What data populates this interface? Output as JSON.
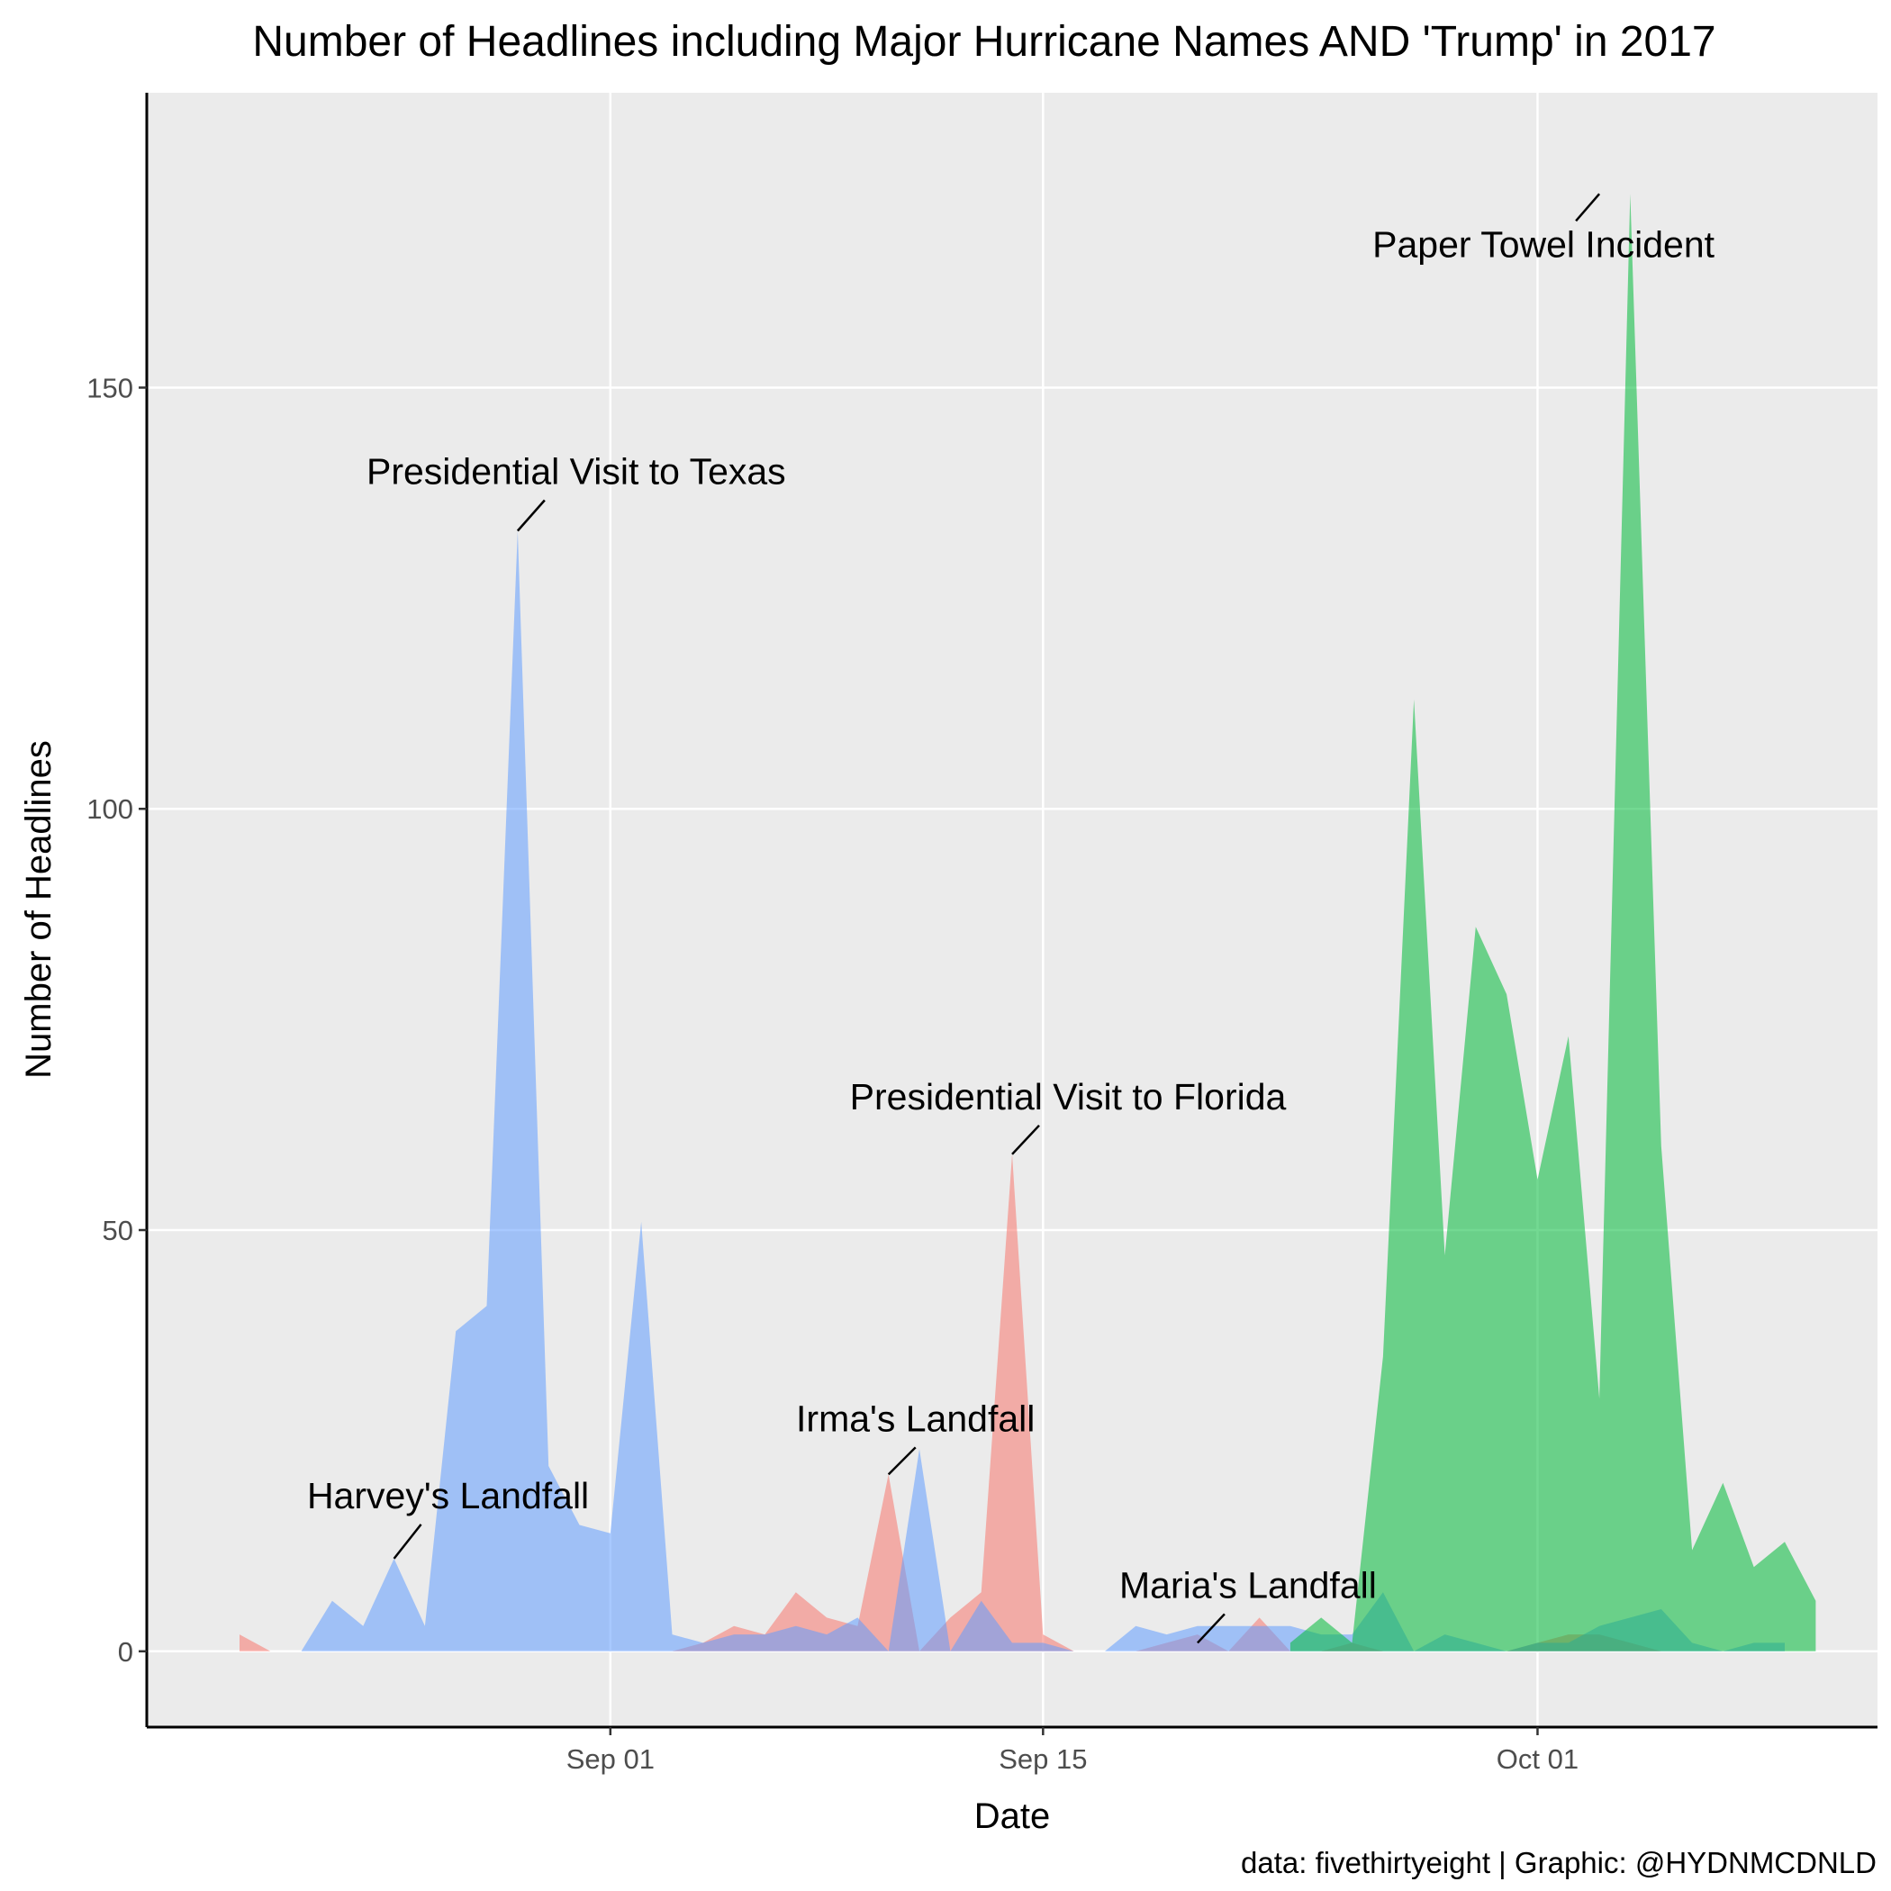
{
  "chart_data": {
    "type": "area",
    "title": "Number of Headlines including Major Hurricane Names AND 'Trump' in 2017",
    "xlabel": "Date",
    "ylabel": "Number of Headlines",
    "caption": "data: fivethirtyeight | Graphic: @HYDNMCDNLD",
    "xlim": [
      "2017-08-17",
      "2017-10-12"
    ],
    "ylim": [
      -9,
      185
    ],
    "x_ticks": [
      {
        "date": "2017-09-01",
        "label": "Sep 01"
      },
      {
        "date": "2017-09-15",
        "label": "Sep 15"
      },
      {
        "date": "2017-10-01",
        "label": "Oct 01"
      }
    ],
    "y_ticks": [
      {
        "value": 0,
        "label": "0"
      },
      {
        "value": 50,
        "label": "50"
      },
      {
        "value": 100,
        "label": "100"
      },
      {
        "value": 150,
        "label": "150"
      }
    ],
    "grid": true,
    "legend": "none",
    "colors": {
      "irma": "#F8766D",
      "harvey": "#619CFF",
      "maria": "#00BA38",
      "panel_bg": "#EBEBEB",
      "grid": "#FFFFFF"
    },
    "series": [
      {
        "key": "irma",
        "color": "#F8766D",
        "points": [
          [
            "2017-08-20",
            2
          ],
          [
            "2017-08-21",
            0
          ],
          [
            "2017-08-22",
            0
          ],
          [
            "2017-08-23",
            0
          ],
          [
            "2017-08-24",
            0
          ],
          [
            "2017-08-25",
            0
          ],
          [
            "2017-08-26",
            0
          ],
          [
            "2017-08-27",
            0
          ],
          [
            "2017-08-28",
            0
          ],
          [
            "2017-08-29",
            0
          ],
          [
            "2017-08-30",
            0
          ],
          [
            "2017-08-31",
            0
          ],
          [
            "2017-09-01",
            0
          ],
          [
            "2017-09-02",
            0
          ],
          [
            "2017-09-03",
            0
          ],
          [
            "2017-09-04",
            1
          ],
          [
            "2017-09-05",
            3
          ],
          [
            "2017-09-06",
            2
          ],
          [
            "2017-09-07",
            7
          ],
          [
            "2017-09-08",
            4
          ],
          [
            "2017-09-09",
            3
          ],
          [
            "2017-09-10",
            21
          ],
          [
            "2017-09-11",
            0
          ],
          [
            "2017-09-12",
            4
          ],
          [
            "2017-09-13",
            7
          ],
          [
            "2017-09-14",
            59
          ],
          [
            "2017-09-15",
            2
          ],
          [
            "2017-09-16",
            0
          ],
          [
            "2017-09-17",
            0
          ],
          [
            "2017-09-18",
            0
          ],
          [
            "2017-09-19",
            1
          ],
          [
            "2017-09-20",
            2
          ],
          [
            "2017-09-21",
            0
          ],
          [
            "2017-09-22",
            4
          ],
          [
            "2017-09-23",
            0
          ],
          [
            "2017-09-24",
            0
          ],
          [
            "2017-09-25",
            1
          ],
          [
            "2017-09-26",
            0
          ],
          [
            "2017-09-27",
            0
          ],
          [
            "2017-09-28",
            0
          ],
          [
            "2017-09-29",
            0
          ],
          [
            "2017-09-30",
            0
          ],
          [
            "2017-10-01",
            1
          ],
          [
            "2017-10-02",
            2
          ],
          [
            "2017-10-03",
            2
          ],
          [
            "2017-10-04",
            1
          ],
          [
            "2017-10-05",
            0
          ],
          [
            "2017-10-06",
            0
          ],
          [
            "2017-10-07",
            0
          ],
          [
            "2017-10-08",
            0
          ],
          [
            "2017-10-09",
            0
          ]
        ]
      },
      {
        "key": "harvey",
        "color": "#619CFF",
        "points": [
          [
            "2017-08-22",
            0
          ],
          [
            "2017-08-23",
            6
          ],
          [
            "2017-08-24",
            3
          ],
          [
            "2017-08-25",
            11
          ],
          [
            "2017-08-26",
            3
          ],
          [
            "2017-08-27",
            38
          ],
          [
            "2017-08-28",
            41
          ],
          [
            "2017-08-29",
            133
          ],
          [
            "2017-08-30",
            22
          ],
          [
            "2017-08-31",
            15
          ],
          [
            "2017-09-01",
            14
          ],
          [
            "2017-09-02",
            51
          ],
          [
            "2017-09-03",
            2
          ],
          [
            "2017-09-04",
            1
          ],
          [
            "2017-09-05",
            2
          ],
          [
            "2017-09-06",
            2
          ],
          [
            "2017-09-07",
            3
          ],
          [
            "2017-09-08",
            2
          ],
          [
            "2017-09-09",
            4
          ],
          [
            "2017-09-10",
            0
          ],
          [
            "2017-09-11",
            24
          ],
          [
            "2017-09-12",
            0
          ],
          [
            "2017-09-13",
            6
          ],
          [
            "2017-09-14",
            1
          ],
          [
            "2017-09-15",
            1
          ],
          [
            "2017-09-16",
            0
          ],
          [
            "2017-09-17",
            0
          ],
          [
            "2017-09-18",
            3
          ],
          [
            "2017-09-19",
            2
          ],
          [
            "2017-09-20",
            3
          ],
          [
            "2017-09-21",
            3
          ],
          [
            "2017-09-22",
            3
          ],
          [
            "2017-09-23",
            3
          ],
          [
            "2017-09-24",
            2
          ],
          [
            "2017-09-25",
            2
          ],
          [
            "2017-09-26",
            7
          ],
          [
            "2017-09-27",
            0
          ],
          [
            "2017-09-28",
            2
          ],
          [
            "2017-09-29",
            1
          ],
          [
            "2017-09-30",
            0
          ],
          [
            "2017-10-01",
            1
          ],
          [
            "2017-10-02",
            1
          ],
          [
            "2017-10-03",
            3
          ],
          [
            "2017-10-04",
            4
          ],
          [
            "2017-10-05",
            5
          ],
          [
            "2017-10-06",
            1
          ],
          [
            "2017-10-07",
            0
          ],
          [
            "2017-10-08",
            1
          ],
          [
            "2017-10-09",
            1
          ]
        ]
      },
      {
        "key": "maria",
        "color": "#00BA38",
        "points": [
          [
            "2017-09-23",
            1
          ],
          [
            "2017-09-24",
            4
          ],
          [
            "2017-09-25",
            1
          ],
          [
            "2017-09-26",
            35
          ],
          [
            "2017-09-27",
            113
          ],
          [
            "2017-09-28",
            47
          ],
          [
            "2017-09-29",
            86
          ],
          [
            "2017-09-30",
            78
          ],
          [
            "2017-10-01",
            56
          ],
          [
            "2017-10-02",
            73
          ],
          [
            "2017-10-03",
            30
          ],
          [
            "2017-10-04",
            173
          ],
          [
            "2017-10-05",
            60
          ],
          [
            "2017-10-06",
            12
          ],
          [
            "2017-10-07",
            20
          ],
          [
            "2017-10-08",
            10
          ],
          [
            "2017-10-09",
            13
          ],
          [
            "2017-10-10",
            6
          ]
        ]
      }
    ],
    "annotations": [
      {
        "label": "Harvey's Landfall",
        "date": "2017-08-25",
        "value": 11
      },
      {
        "label": "Presidential Visit to Texas",
        "date": "2017-08-29",
        "value": 133
      },
      {
        "label": "Irma's Landfall",
        "date": "2017-09-10",
        "value": 21
      },
      {
        "label": "Presidential Visit to Florida",
        "date": "2017-09-14",
        "value": 59
      },
      {
        "label": "Maria's Landfall",
        "date": "2017-09-20",
        "value": 1
      },
      {
        "label": "Paper Towel Incident",
        "date": "2017-10-03",
        "value": 173
      }
    ]
  }
}
